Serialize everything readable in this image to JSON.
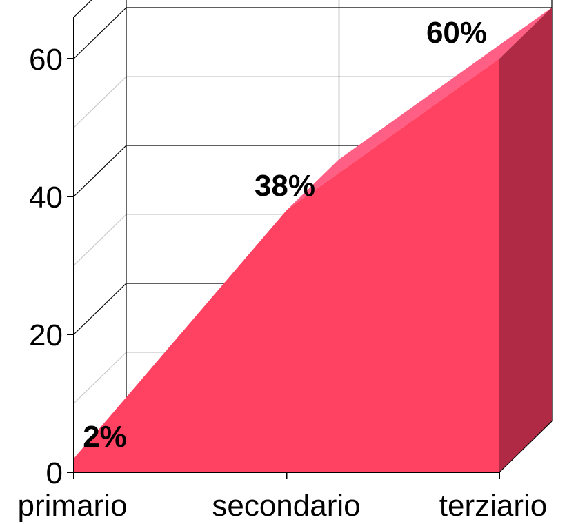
{
  "chart_data": {
    "type": "area",
    "categories": [
      "primario",
      "secondario",
      "terziario"
    ],
    "values": [
      2,
      38,
      60
    ],
    "data_labels": [
      "2%",
      "38%",
      "60%"
    ],
    "ylim": [
      0,
      66
    ],
    "yticks": [
      "0",
      "20",
      "40",
      "60"
    ],
    "ytick_values": [
      0,
      20,
      40,
      60
    ],
    "grid": true,
    "three_d": true,
    "colors": {
      "front": "#ff4162",
      "top": "#ff5f85",
      "side": "#b02a45",
      "grid_major": "#000000",
      "grid_minor": "#c8c8c8"
    }
  }
}
